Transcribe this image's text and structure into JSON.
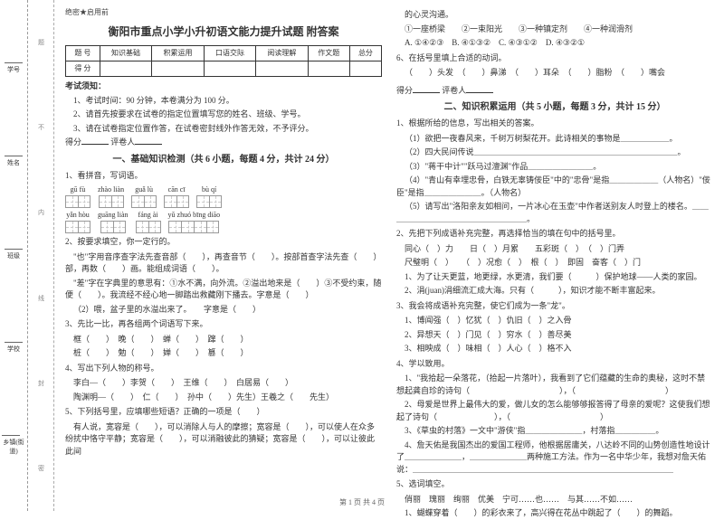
{
  "secret_label": "绝密★启用前",
  "exam_title": "衡阳市重点小学小升初语文能力提升试题 附答案",
  "score_table": {
    "headers": [
      "题 号",
      "知识基础",
      "积累运用",
      "口语交际",
      "阅读理解",
      "作文题",
      "总分"
    ],
    "row_label": "得 分"
  },
  "notice_title": "考试须知：",
  "notices": [
    "1、考试时间：90 分钟，本卷满分为 100 分。",
    "2、请首先按要求在试卷的指定位置填写您的姓名、班级、学号。",
    "3、请在试卷指定位置作答，在试卷密封线外作答无效，不予评分。"
  ],
  "score_prefix": "得分",
  "grader_prefix": "评卷人",
  "section1_title": "一、基础知识检测（共 6 小题，每题 4 分，共计 24 分）",
  "q1": "1、看拼音，写词语。",
  "pinyin_row1": [
    "gū fù",
    "zhào liàn",
    "guǎ lù",
    "cān cī",
    "bù qí"
  ],
  "pinyin_counts1": [
    2,
    2,
    2,
    2,
    2
  ],
  "pinyin_row2": [
    "yǎn hòu",
    "guāng liàn",
    "fáng ài",
    "yǔ zhuó bīng diāo"
  ],
  "pinyin_counts2": [
    2,
    2,
    2,
    4
  ],
  "q2": "2、按要求填空，你一定行的。",
  "q2_items": [
    "\"也\"字用音序查字法先查音部（　　），再查音节（　　）。按部首查字法先查（　　）部，再数（　　）画。能组成词语（　　）。",
    "\"差\"字在字典里的意思有：①水不满，向外流。②溢出地来是（　　）③不受约束，随便（　　）。我流经不经心地一脚踏出救藏刚下播去。字意是（　　）",
    "（2）喂，盆子里的水溢出来了。　　字意是（　　）"
  ],
  "q3": "3、先比一比，再各组两个词语写下来。",
  "q3_items": [
    "框（　　）　晚（　　）　蝉（　　）　蹿（　　）",
    "桩（　　）　勉（　　）　婵（　　）　篡（　　）"
  ],
  "q4": "4、写出下列人物的称号。",
  "q4_items": [
    "李白—（　　）李贺（　　）　王维（　　）　白居易（　　）",
    "陶渊明—（　　）　仁（　　）　孙中（　　）先生）王羲之（　　先生）"
  ],
  "q5": "5、下列括号里，应填哪些短语？正确的一项是（　　）",
  "q5_text": "有人说，宽容是（　　），可以消除人与人的摩擦；宽容是（　　），可以使人在众多纷扰中恪守平静；宽容是（　　），可以消融彼此的猜疑；宽容是（　　），可以让彼此此间",
  "col2_top": "的心灵沟通。",
  "q5_options": [
    "①一座桥梁　　②一束阳光　　③一种镇定剂　　④一种润滑剂",
    "A. ①④②③　B. ④①③②　C. ④③①②　D. ④③②①"
  ],
  "q6": "6、在括号里填上合适的动词。",
  "q6_text": "（　　）头发　（　　）鼻涕　（　　）耳朵　（　　）脂粉　（　　）嘴会",
  "section2_title": "二、知识积累运用（共 5 小题，每题 3 分，共计 15 分）",
  "s2_q1": "1、根据所给的信息，写出相关的答案。",
  "s2_q1_items": [
    "（1）欲把一夜春风来，千树万树梨花开。此诗相关的事物是＿＿＿＿＿＿。",
    "（2）四大民间传说＿＿＿＿＿＿＿＿＿＿＿＿＿＿＿＿＿＿＿＿＿＿＿＿＿。",
    "（3）\"蒋干中计\"\"跃马过澶渊\"作品＿＿＿＿＿＿＿＿。",
    "（4）\"青山有幸埋忠骨，白铁无辜铸佞臣\"中的\"忠骨\"是指＿＿＿＿＿＿（人物名）\"佞臣\"是指＿＿＿＿＿＿＿。（人物名）",
    "（5）请写出\"洛阳亲友如相问，一片冰心在玉壶\"中作者送别友人时登上的楼名。＿＿＿＿＿＿＿＿＿＿＿＿＿＿＿＿＿＿。"
  ],
  "s2_q2": "2、先把下列成语补充完整，再选择恰当的填在句中的括号里。",
  "s2_q2_items": [
    "同心（　）力　　日（　）月累　　五彩斑（　）　（　）门弄",
    "尺璧明（　）　　（　）况愈（　）　根（　）　即固　奋客（　）门",
    "1、为了让天更蓝，地更绿，水更清，我们要（　　　）保护地球——人类的家园。",
    "2、涓(juan)涓细流汇成大海。只有（　　　），知识才能不断丰富起来。"
  ],
  "s2_q3": "3、我会将成语补充完整，使它们成为一条\"龙\"。",
  "s2_q3_items": [
    "1、博闻强（　）忆犹（　）仇旧（　）之入骨",
    "2、异想天（　）门见（　）穷水（　）善尽美",
    "3、相映成（　）味相（　）人心（　）格不入"
  ],
  "s2_q4": "4、学以致用。",
  "s2_q4_items": [
    "1、\"我拾起一朵落花，（拾起一片落叶），我看到了它们蕴藏的生命的奥秘，这时不禁想起龚自珍的诗句（　　　　　　　　　　　），（　　　　　　　　　　　）",
    "2、母爱是世界上最伟大的爱，做儿女的怎么能够够报答得了母亲的爱呢？这使我们想起了诗句（　　　　　　　），（　　　　　　　　　　　）",
    "3、《草虫的村落》一文中\"游侠\"指＿＿＿＿＿＿＿，村落指＿＿＿＿＿。",
    "4、詹天佑是我国杰出的爱国工程师，他根据居庸关，八达岭不同的山势创造性地设计了＿＿＿＿＿＿＿，＿＿＿＿＿＿＿两种施工方法。作为一名中华少年，我想对詹天佑说：＿＿＿＿＿＿＿＿＿＿＿＿＿＿＿＿＿＿＿＿＿＿＿＿＿＿＿＿＿＿＿＿"
  ],
  "s2_q5": "5、选词填空。",
  "s2_q5_items": [
    "俏丽　瑰丽　绚丽　优美　宁可……也……　与其……不如……",
    "1、蝴蝶穿着（　　）的彩衣来了，高兴得在花丛中跳起了（　　）的舞蹈。"
  ],
  "margin_labels": [
    "学号",
    "姓名",
    "班级",
    "学校",
    "乡镇(街道)"
  ],
  "cut_labels": [
    "题",
    "不",
    "内",
    "线",
    "封",
    "密"
  ],
  "footer": "第 1 页 共 4 页"
}
